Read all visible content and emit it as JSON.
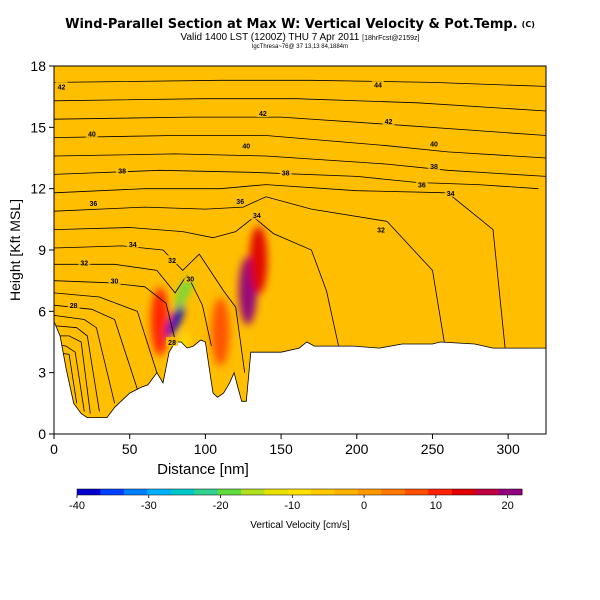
{
  "header": {
    "title": "Wind-Parallel Section at Max W: Vertical Velocity & Pot.Temp.",
    "title_mark": "(C)",
    "valid_line": "Valid 1400 LST (1200Z) THU 7 Apr 2011",
    "valid_small": "[18hrFcst@2159z]",
    "sub_line": "lgcThresa~76@ 37 13,13 84,1884m"
  },
  "chart_data": {
    "type": "heatmap",
    "title": "Wind-Parallel Section at Max W: Vertical Velocity & Pot.Temp.",
    "xlabel": "Distance [nm]",
    "ylabel": "Height [Kft MSL]",
    "xlim": [
      0,
      325
    ],
    "ylim": [
      0,
      18
    ],
    "xticks": [
      "0",
      "50",
      "100",
      "150",
      "200",
      "250",
      "300"
    ],
    "yticks": [
      "0",
      "3",
      "6",
      "9",
      "12",
      "15",
      "18"
    ],
    "colorbar": {
      "label": "Vertical Velocity [cm/s]",
      "min": -40,
      "max": 22,
      "ticks": [
        "-40",
        "-30",
        "-20",
        "-10",
        "0",
        "10",
        "20"
      ],
      "colors": [
        "#0000cc",
        "#0040ff",
        "#0080ff",
        "#00b0ff",
        "#00c8c8",
        "#30d090",
        "#60dc40",
        "#b0e020",
        "#e8e000",
        "#ffe000",
        "#ffc800",
        "#ffb000",
        "#ff9800",
        "#ff7800",
        "#ff5000",
        "#ff2000",
        "#e00000",
        "#c00040",
        "#900080"
      ]
    },
    "terrain_kft": [
      [
        0,
        5.5
      ],
      [
        4,
        4.8
      ],
      [
        8,
        3.2
      ],
      [
        13,
        1.5
      ],
      [
        18,
        1.0
      ],
      [
        22,
        0.8
      ],
      [
        35,
        0.8
      ],
      [
        40,
        1.3
      ],
      [
        50,
        2.0
      ],
      [
        58,
        2.3
      ],
      [
        62,
        2.4
      ],
      [
        68,
        3.0
      ],
      [
        72,
        2.5
      ],
      [
        76,
        4.0
      ],
      [
        80,
        4.5
      ],
      [
        84,
        4.5
      ],
      [
        88,
        4.2
      ],
      [
        92,
        4.3
      ],
      [
        97,
        4.6
      ],
      [
        100,
        4.5
      ],
      [
        102,
        3.5
      ],
      [
        105,
        2.0
      ],
      [
        108,
        1.8
      ],
      [
        112,
        2.0
      ],
      [
        116,
        2.5
      ],
      [
        119,
        3.0
      ],
      [
        121,
        2.4
      ],
      [
        124,
        1.6
      ],
      [
        127,
        1.6
      ],
      [
        130,
        4.0
      ],
      [
        150,
        4.0
      ],
      [
        162,
        4.2
      ],
      [
        167,
        4.5
      ],
      [
        172,
        4.3
      ],
      [
        198,
        4.3
      ],
      [
        215,
        4.2
      ],
      [
        230,
        4.4
      ],
      [
        250,
        4.4
      ],
      [
        255,
        4.5
      ],
      [
        278,
        4.4
      ],
      [
        290,
        4.2
      ],
      [
        325,
        4.2
      ]
    ],
    "updraft_regions": [
      {
        "x": 128,
        "y": 7,
        "value": 20
      },
      {
        "x": 135,
        "y": 8.5,
        "value": 14
      },
      {
        "x": 110,
        "y": 5,
        "value": 8
      },
      {
        "x": 70,
        "y": 5.5,
        "value": 9
      }
    ],
    "downdraft_regions": [
      {
        "x": 80,
        "y": 5.5,
        "value": -40
      },
      {
        "x": 86,
        "y": 7,
        "value": -20
      },
      {
        "x": 84,
        "y": 4.2,
        "value": -10
      }
    ],
    "isentrope_labels": [
      {
        "x": 5,
        "y": 17,
        "text": "42"
      },
      {
        "x": 25,
        "y": 14.7,
        "text": "40"
      },
      {
        "x": 45,
        "y": 12.9,
        "text": "38"
      },
      {
        "x": 26,
        "y": 11.3,
        "text": "36"
      },
      {
        "x": 52,
        "y": 9.3,
        "text": "34"
      },
      {
        "x": 20,
        "y": 8.4,
        "text": "32"
      },
      {
        "x": 40,
        "y": 7.5,
        "text": "30"
      },
      {
        "x": 13,
        "y": 6.3,
        "text": "28"
      },
      {
        "x": 78,
        "y": 4.5,
        "text": "28"
      },
      {
        "x": 90,
        "y": 7.6,
        "text": "30"
      },
      {
        "x": 78,
        "y": 8.5,
        "text": "32"
      },
      {
        "x": 138,
        "y": 15.7,
        "text": "42"
      },
      {
        "x": 127,
        "y": 14.1,
        "text": "40"
      },
      {
        "x": 153,
        "y": 12.8,
        "text": "38"
      },
      {
        "x": 123,
        "y": 11.4,
        "text": "36"
      },
      {
        "x": 134,
        "y": 10.7,
        "text": "34"
      },
      {
        "x": 216,
        "y": 10.0,
        "text": "32"
      },
      {
        "x": 214,
        "y": 17.1,
        "text": "44"
      },
      {
        "x": 221,
        "y": 15.3,
        "text": "42"
      },
      {
        "x": 251,
        "y": 14.2,
        "text": "40"
      },
      {
        "x": 251,
        "y": 13.1,
        "text": "38"
      },
      {
        "x": 243,
        "y": 12.2,
        "text": "36"
      },
      {
        "x": 262,
        "y": 11.8,
        "text": "34"
      }
    ],
    "isentropes": [
      [
        [
          0,
          4.0
        ],
        [
          10,
          3.9
        ],
        [
          15,
          1.5
        ]
      ],
      [
        [
          0,
          4.4
        ],
        [
          8,
          4.3
        ],
        [
          14,
          4.0
        ],
        [
          20,
          1.1
        ]
      ],
      [
        [
          0,
          4.8
        ],
        [
          10,
          4.8
        ],
        [
          18,
          4.5
        ],
        [
          24,
          1.0
        ]
      ],
      [
        [
          0,
          5.3
        ],
        [
          15,
          5.2
        ],
        [
          22,
          4.8
        ],
        [
          30,
          1.1
        ]
      ],
      [
        [
          0,
          5.8
        ],
        [
          20,
          5.6
        ],
        [
          28,
          5.2
        ],
        [
          40,
          1.5
        ]
      ],
      [
        [
          0,
          6.3
        ],
        [
          25,
          6.1
        ],
        [
          40,
          5.6
        ],
        [
          55,
          2.2
        ]
      ],
      [
        [
          0,
          6.9
        ],
        [
          30,
          6.7
        ],
        [
          55,
          6.0
        ],
        [
          68,
          3.0
        ]
      ],
      [
        [
          0,
          7.5
        ],
        [
          35,
          7.4
        ],
        [
          60,
          7.2
        ],
        [
          74,
          6.4
        ],
        [
          80,
          4.6
        ]
      ],
      [
        [
          0,
          8.3
        ],
        [
          40,
          8.3
        ],
        [
          68,
          8.0
        ],
        [
          80,
          6.9
        ],
        [
          88,
          7.8
        ],
        [
          98,
          6.3
        ],
        [
          104,
          4.3
        ]
      ],
      [
        [
          0,
          9.1
        ],
        [
          45,
          9.2
        ],
        [
          72,
          9.0
        ],
        [
          85,
          8.0
        ],
        [
          96,
          8.8
        ],
        [
          112,
          7.0
        ],
        [
          120,
          6.2
        ],
        [
          126,
          3.0
        ]
      ],
      [
        [
          0,
          10.0
        ],
        [
          50,
          10.1
        ],
        [
          85,
          9.9
        ],
        [
          105,
          9.6
        ],
        [
          120,
          9.9
        ],
        [
          132,
          10.6
        ],
        [
          145,
          9.8
        ],
        [
          170,
          9.0
        ],
        [
          180,
          7.0
        ],
        [
          188,
          4.3
        ]
      ],
      [
        [
          0,
          10.9
        ],
        [
          60,
          11.1
        ],
        [
          100,
          11.0
        ],
        [
          125,
          11.1
        ],
        [
          140,
          11.6
        ],
        [
          170,
          11.0
        ],
        [
          220,
          10.4
        ],
        [
          250,
          8.0
        ],
        [
          258,
          4.4
        ]
      ],
      [
        [
          0,
          11.8
        ],
        [
          60,
          12.0
        ],
        [
          110,
          12.0
        ],
        [
          140,
          12.2
        ],
        [
          200,
          11.9
        ],
        [
          260,
          11.8
        ],
        [
          290,
          10.0
        ],
        [
          298,
          4.2
        ]
      ],
      [
        [
          0,
          12.7
        ],
        [
          70,
          12.9
        ],
        [
          130,
          12.8
        ],
        [
          200,
          12.6
        ],
        [
          240,
          12.3
        ],
        [
          280,
          12.2
        ],
        [
          320,
          12.0
        ]
      ],
      [
        [
          0,
          13.6
        ],
        [
          80,
          13.7
        ],
        [
          140,
          13.6
        ],
        [
          220,
          13.2
        ],
        [
          260,
          12.9
        ],
        [
          325,
          12.6
        ]
      ],
      [
        [
          0,
          14.5
        ],
        [
          80,
          14.6
        ],
        [
          140,
          14.6
        ],
        [
          220,
          14.1
        ],
        [
          260,
          13.8
        ],
        [
          325,
          13.5
        ]
      ],
      [
        [
          0,
          15.4
        ],
        [
          90,
          15.5
        ],
        [
          150,
          15.5
        ],
        [
          230,
          15.1
        ],
        [
          325,
          14.6
        ]
      ],
      [
        [
          0,
          16.3
        ],
        [
          100,
          16.4
        ],
        [
          160,
          16.4
        ],
        [
          240,
          16.2
        ],
        [
          325,
          15.8
        ]
      ],
      [
        [
          0,
          17.2
        ],
        [
          110,
          17.3
        ],
        [
          170,
          17.3
        ],
        [
          250,
          17.2
        ],
        [
          325,
          17.0
        ]
      ]
    ]
  }
}
